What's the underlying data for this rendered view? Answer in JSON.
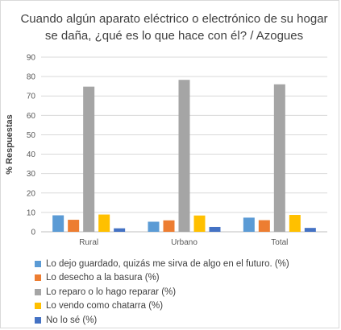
{
  "chart_data": {
    "type": "bar",
    "title": "Cuando algún aparato eléctrico o electrónico de su hogar se daña, ¿qué es lo que hace con él? / Azogues",
    "xlabel": "",
    "ylabel": "% Respuestas",
    "ylim": [
      0,
      90
    ],
    "yticks": [
      0,
      10,
      20,
      30,
      40,
      50,
      60,
      70,
      80,
      90
    ],
    "grid": true,
    "legend": "bottom",
    "categories": [
      "Rural",
      "Urbano",
      "Total"
    ],
    "series": [
      {
        "name": "Lo dejo guardado, quizás me sirva de algo en el futuro. (%)",
        "color": "#5b9bd5",
        "values": [
          8.5,
          5.2,
          7.3
        ]
      },
      {
        "name": "Lo desecho a la basura (%)",
        "color": "#ed7d31",
        "values": [
          6.2,
          5.9,
          6.0
        ]
      },
      {
        "name": "Lo reparo o lo hago reparar (%)",
        "color": "#a5a5a5",
        "values": [
          74.8,
          78.3,
          76.0
        ]
      },
      {
        "name": "Lo vendo como chatarra (%)",
        "color": "#ffc000",
        "values": [
          8.9,
          8.4,
          8.7
        ]
      },
      {
        "name": "No lo sé (%)",
        "color": "#4472c4",
        "values": [
          1.8,
          2.5,
          2.0
        ]
      }
    ]
  }
}
